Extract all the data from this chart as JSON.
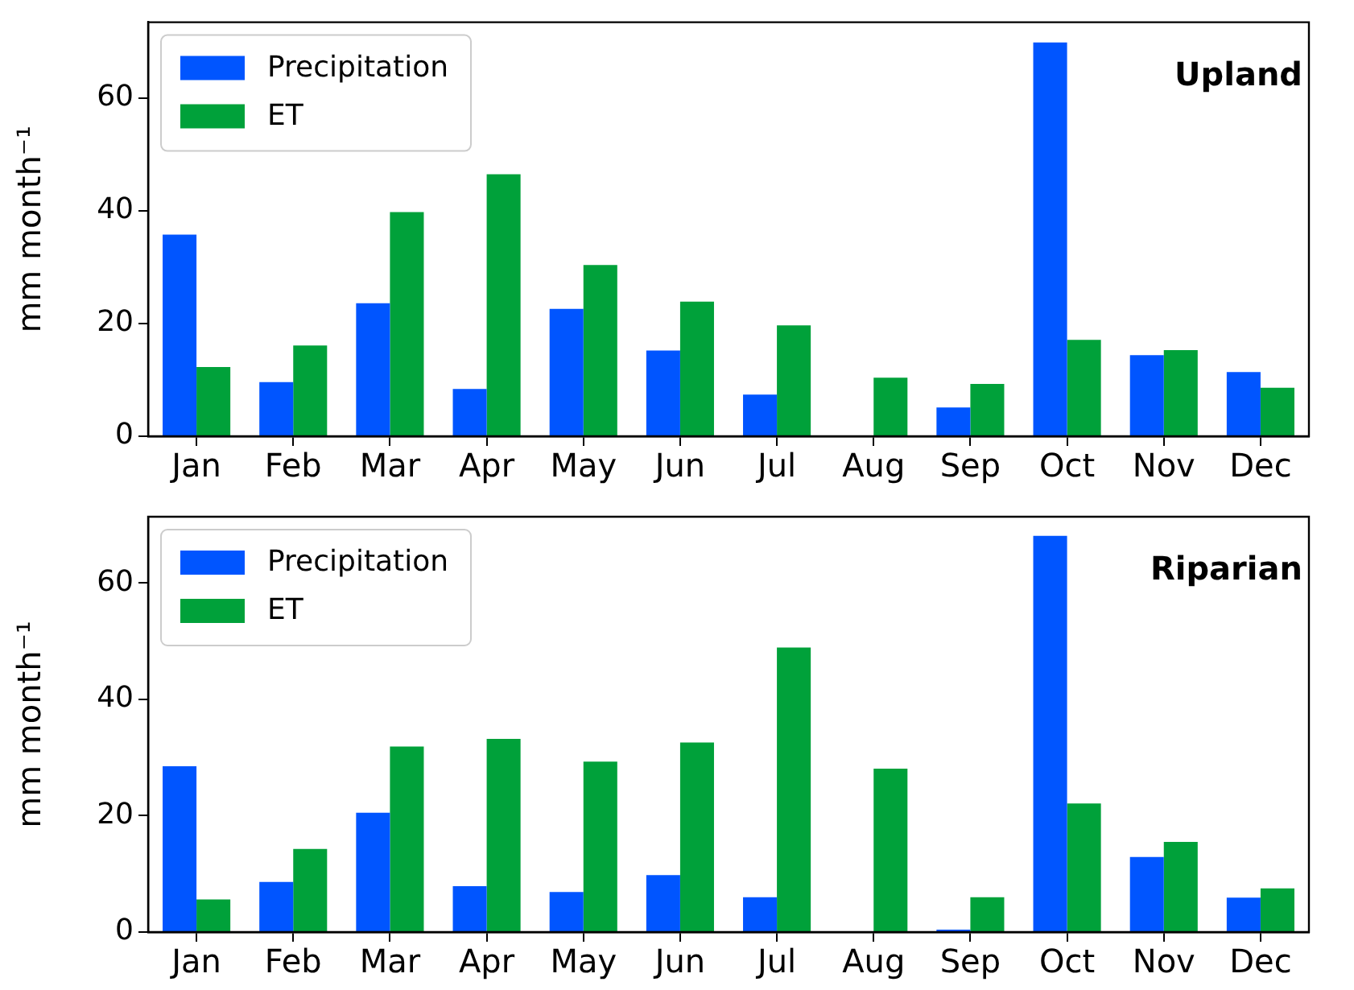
{
  "chart_data": [
    {
      "type": "bar",
      "title": "Upland",
      "ylabel": "mm month⁻¹",
      "categories": [
        "Jan",
        "Feb",
        "Mar",
        "Apr",
        "May",
        "Jun",
        "Jul",
        "Aug",
        "Sep",
        "Oct",
        "Nov",
        "Dec"
      ],
      "series": [
        {
          "name": "Precipitation",
          "color": "#0055ff",
          "values": [
            35.8,
            9.6,
            23.6,
            8.4,
            22.6,
            15.2,
            7.4,
            0,
            5.1,
            69.9,
            14.4,
            11.4
          ]
        },
        {
          "name": "ET",
          "color": "#00a13a",
          "values": [
            12.3,
            16.1,
            39.8,
            46.5,
            30.4,
            23.9,
            19.7,
            10.4,
            9.3,
            17.1,
            15.3,
            8.6
          ]
        }
      ],
      "ylim": [
        0,
        73.5
      ],
      "yticks": [
        0,
        20,
        40,
        60
      ],
      "grid": false,
      "legend": "top left"
    },
    {
      "type": "bar",
      "title": "Riparian",
      "ylabel": "mm month⁻¹",
      "categories": [
        "Jan",
        "Feb",
        "Mar",
        "Apr",
        "May",
        "Jun",
        "Jul",
        "Aug",
        "Sep",
        "Oct",
        "Nov",
        "Dec"
      ],
      "series": [
        {
          "name": "Precipitation",
          "color": "#0055ff",
          "values": [
            28.5,
            8.6,
            20.5,
            7.9,
            6.9,
            9.8,
            6.0,
            0,
            0.4,
            68.1,
            12.9,
            5.9
          ]
        },
        {
          "name": "ET",
          "color": "#00a13a",
          "values": [
            5.6,
            14.3,
            31.9,
            33.2,
            29.3,
            32.6,
            48.9,
            28.1,
            6.0,
            22.1,
            15.5,
            7.5
          ]
        }
      ],
      "ylim": [
        0,
        71.4
      ],
      "yticks": [
        0,
        20,
        40,
        60
      ],
      "grid": false,
      "legend": "top left"
    }
  ]
}
